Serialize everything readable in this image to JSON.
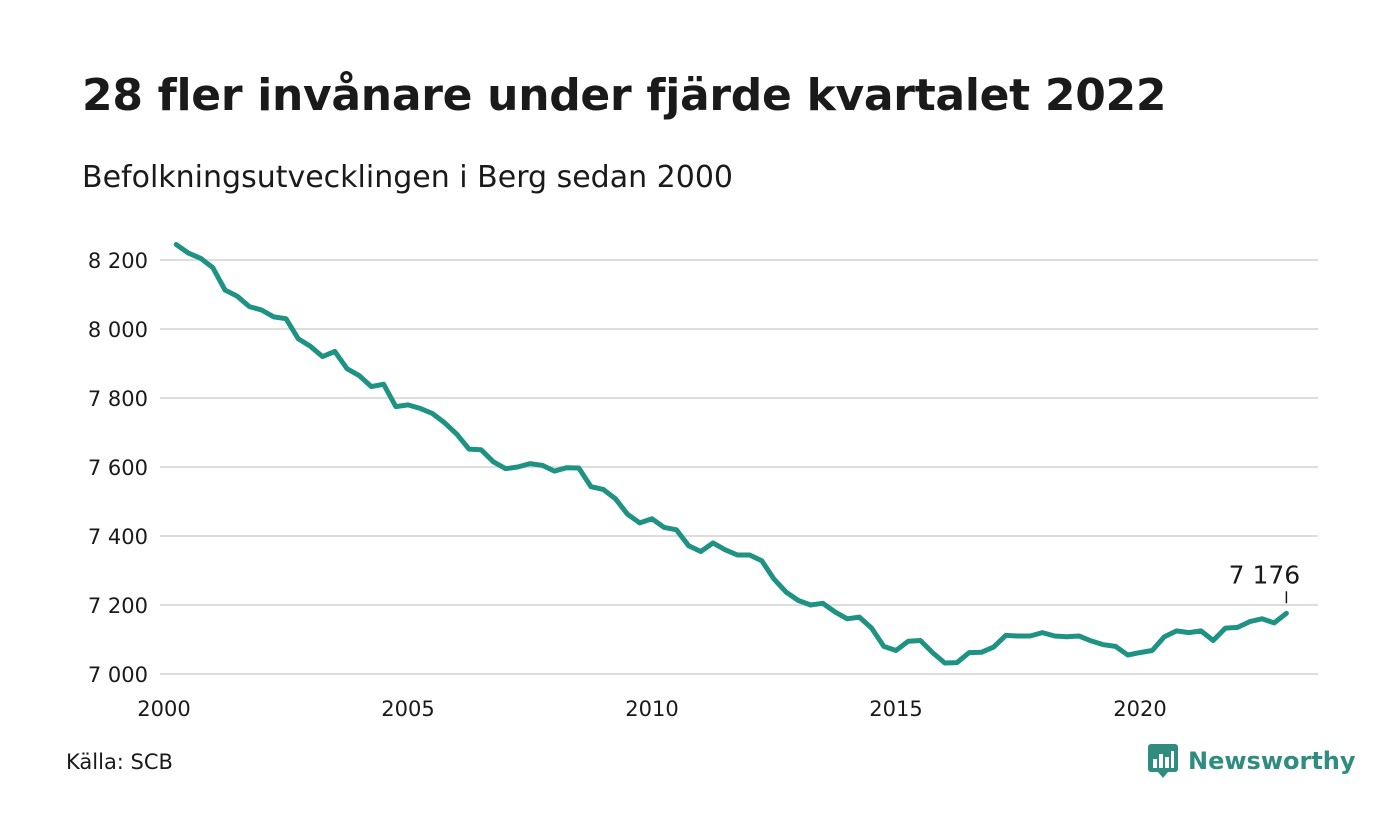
{
  "header": {
    "title": "28 fler invånare under fjärde kvartalet 2022",
    "subtitle": "Befolkningsutvecklingen i Berg sedan 2000"
  },
  "footer": {
    "source": "Källa: SCB",
    "brand": "Newsworthy"
  },
  "colors": {
    "line": "#1f9383",
    "grid": "#dddddd",
    "brand": "#2e8d7f"
  },
  "chart_data": {
    "type": "line",
    "title": "28 fler invånare under fjärde kvartalet 2022",
    "subtitle": "Befolkningsutvecklingen i Berg sedan 2000",
    "xlabel": "",
    "ylabel": "",
    "xlim": [
      2000,
      2023.5
    ],
    "ylim": [
      7000,
      8250
    ],
    "x_ticks": [
      2000,
      2005,
      2010,
      2015,
      2020
    ],
    "x_tick_labels": [
      "2000",
      "2005",
      "2010",
      "2015",
      "2020"
    ],
    "y_ticks": [
      7000,
      7200,
      7400,
      7600,
      7800,
      8000,
      8200
    ],
    "y_tick_labels": [
      "7 000",
      "7 200",
      "7 400",
      "7 600",
      "7 800",
      "8 000",
      "8 200"
    ],
    "grid": true,
    "legend": "none",
    "annotation": {
      "x": 2023,
      "y": 7176,
      "text": "7 176"
    },
    "series": [
      {
        "x": [
          2000.25,
          2000.5,
          2000.75,
          2001,
          2001.25,
          2001.5,
          2001.75,
          2002,
          2002.25,
          2002.5,
          2002.75,
          2003,
          2003.25,
          2003.5,
          2003.75,
          2004,
          2004.25,
          2004.5,
          2004.75,
          2005,
          2005.25,
          2005.5,
          2005.75,
          2006,
          2006.25,
          2006.5,
          2006.75,
          2007,
          2007.25,
          2007.5,
          2007.75,
          2008,
          2008.25,
          2008.5,
          2008.75,
          2009,
          2009.25,
          2009.5,
          2009.75,
          2010,
          2010.25,
          2010.5,
          2010.75,
          2011,
          2011.25,
          2011.5,
          2011.75,
          2012,
          2012.25,
          2012.5,
          2012.75,
          2013,
          2013.25,
          2013.5,
          2013.75,
          2014,
          2014.25,
          2014.5,
          2014.75,
          2015,
          2015.25,
          2015.5,
          2015.75,
          2016,
          2016.25,
          2016.5,
          2016.75,
          2017,
          2017.25,
          2017.5,
          2017.75,
          2018,
          2018.25,
          2018.5,
          2018.75,
          2019,
          2019.25,
          2019.5,
          2019.75,
          2020,
          2020.25,
          2020.5,
          2020.75,
          2021,
          2021.25,
          2021.5,
          2021.75,
          2022,
          2022.25,
          2022.5,
          2022.75,
          2023
        ],
        "values": [
          8245,
          8220,
          8205,
          8178,
          8113,
          8095,
          8065,
          8055,
          8035,
          8030,
          7972,
          7950,
          7920,
          7935,
          7885,
          7865,
          7833,
          7840,
          7775,
          7780,
          7770,
          7755,
          7728,
          7695,
          7652,
          7650,
          7615,
          7595,
          7600,
          7610,
          7605,
          7588,
          7598,
          7597,
          7543,
          7535,
          7508,
          7463,
          7438,
          7450,
          7425,
          7418,
          7372,
          7355,
          7380,
          7360,
          7345,
          7345,
          7328,
          7275,
          7237,
          7213,
          7200,
          7205,
          7180,
          7160,
          7165,
          7133,
          7080,
          7068,
          7095,
          7097,
          7062,
          7032,
          7033,
          7062,
          7063,
          7078,
          7112,
          7110,
          7110,
          7120,
          7110,
          7108,
          7110,
          7096,
          7085,
          7080,
          7055,
          7062,
          7068,
          7108,
          7125,
          7120,
          7125,
          7097,
          7133,
          7135,
          7152,
          7160,
          7148,
          7176
        ]
      }
    ]
  }
}
